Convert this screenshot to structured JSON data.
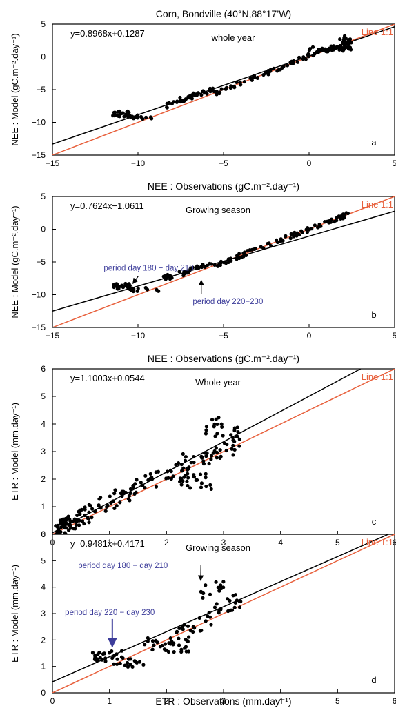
{
  "figure_title": "Corn, Bondville (40°N,88°17’W)",
  "colors": {
    "regression": "#000000",
    "one_to_one": "#e8603c",
    "points": "#000000",
    "annotation": "#3c3c9a"
  },
  "chart_data": [
    {
      "type": "scatter",
      "panel": "a",
      "title": "Corn, Bondville (40°N,88°17’W)",
      "xlabel": "NEE : Observations (gC.m⁻².day⁻¹)",
      "ylabel": "NEE : Model (gC.m⁻².day⁻¹)",
      "xlim": [
        -15,
        5
      ],
      "ylim": [
        -15,
        5
      ],
      "xticks": [
        -15,
        -10,
        -5,
        0,
        5
      ],
      "yticks": [
        -15,
        -10,
        -5,
        0,
        5
      ],
      "xtick_labels": [
        "−15",
        "−10",
        "−5",
        "0",
        "5"
      ],
      "ytick_labels": [
        "−15",
        "−10",
        "−5",
        "0",
        "5"
      ],
      "equation": "y=0.8968x+0.1287",
      "fit": {
        "slope": 0.8968,
        "intercept": 0.1287
      },
      "season_label": "whole year",
      "line_label": "Line 1:1",
      "clusters": [
        {
          "x0": -11.5,
          "x1": -10.3,
          "base": -8.7,
          "spread": 0.45,
          "n": 24
        },
        {
          "x0": -10.5,
          "x1": -8.8,
          "base": -9.2,
          "spread": 0.3,
          "n": 12
        },
        {
          "x0": -8.5,
          "x1": -5.5,
          "base": "fit",
          "spread": 0.45,
          "n": 40
        },
        {
          "x0": -5.5,
          "x1": -1.0,
          "base": "one",
          "spread": 0.35,
          "n": 45
        },
        {
          "x0": -1.0,
          "x1": 2.5,
          "base": "fit",
          "spread": 0.35,
          "n": 45
        },
        {
          "x0": 0.0,
          "x1": 2.5,
          "base": 1.2,
          "spread": 0.3,
          "n": 40
        },
        {
          "x0": 1.8,
          "x1": 2.5,
          "base": 2.9,
          "spread": 0.3,
          "n": 10
        }
      ],
      "seed": 11
    },
    {
      "type": "scatter",
      "panel": "b",
      "title": "NEE : Observations (gC.m⁻².day⁻¹)",
      "xlabel": "NEE : Observations (gC.m⁻².day⁻¹)",
      "ylabel": "NEE : Model (gC.m⁻².day⁻¹)",
      "xlim": [
        -15,
        5
      ],
      "ylim": [
        -15,
        5
      ],
      "xticks": [
        -15,
        -10,
        -5,
        0,
        5
      ],
      "yticks": [
        -15,
        -10,
        -5,
        0,
        5
      ],
      "xtick_labels": [
        "−15",
        "−10",
        "−5",
        "0",
        "5"
      ],
      "ytick_labels": [
        "−15",
        "−10",
        "−5",
        "0",
        "5"
      ],
      "equation": "y=0.7624x−1.0611",
      "fit": {
        "slope": 0.7624,
        "intercept": -1.0611
      },
      "season_label": "Growing season",
      "line_label": "Line 1:1",
      "annotations": [
        {
          "text": "period day 180 − day 210",
          "x": -12.0,
          "y": -6.3,
          "arrow_to": [
            -10.3,
            -8.3
          ]
        },
        {
          "text": "period day 220−230",
          "x": -6.8,
          "y": -11.4,
          "arrow_to": [
            -6.3,
            -7.8
          ]
        }
      ],
      "clusters": [
        {
          "x0": -11.5,
          "x1": -10.3,
          "base": -8.7,
          "spread": 0.45,
          "n": 24
        },
        {
          "x0": -10.5,
          "x1": -8.8,
          "base": -9.2,
          "spread": 0.3,
          "n": 12
        },
        {
          "x0": -8.5,
          "x1": -5.5,
          "base": "fit",
          "spread": 0.45,
          "n": 40
        },
        {
          "x0": -5.5,
          "x1": -1.0,
          "base": "one",
          "spread": 0.35,
          "n": 45
        },
        {
          "x0": -1.0,
          "x1": 2.5,
          "base": "one",
          "spread": 0.35,
          "n": 40
        }
      ],
      "seed": 23
    },
    {
      "type": "scatter",
      "panel": "c",
      "title": "NEE : Observations (gC.m⁻².day⁻¹)",
      "xlabel": "ETR : Observations (mm.day⁻¹)",
      "ylabel": "ETR : Model (mm.day⁻¹)",
      "xlim": [
        0,
        6
      ],
      "ylim": [
        0,
        6
      ],
      "xticks": [
        0,
        1,
        2,
        3,
        4,
        5,
        6
      ],
      "yticks": [
        0,
        1,
        2,
        3,
        4,
        5,
        6
      ],
      "xtick_labels": [
        "0",
        "1",
        "2",
        "3",
        "4",
        "5",
        "6"
      ],
      "ytick_labels": [
        "0",
        "1",
        "2",
        "3",
        "4",
        "5",
        "6"
      ],
      "equation": "y=1.1003x+0.0544",
      "fit": {
        "slope": 1.1003,
        "intercept": 0.0544
      },
      "season_label": "Whole year",
      "line_label": "Line 1:1",
      "clusters": [
        {
          "x0": 0.05,
          "x1": 0.6,
          "base": "fit",
          "spread": 0.3,
          "n": 70
        },
        {
          "x0": 0.6,
          "x1": 1.5,
          "base": "fit",
          "spread": 0.35,
          "n": 45
        },
        {
          "x0": 1.5,
          "x1": 2.5,
          "base": "fit",
          "spread": 0.35,
          "n": 35
        },
        {
          "x0": 2.2,
          "x1": 2.8,
          "base": 1.9,
          "spread": 0.3,
          "n": 25
        },
        {
          "x0": 2.5,
          "x1": 3.3,
          "base": "one",
          "spread": 0.3,
          "n": 30
        },
        {
          "x0": 2.6,
          "x1": 3.0,
          "base": 3.9,
          "spread": 0.35,
          "n": 14
        },
        {
          "x0": 3.0,
          "x1": 3.3,
          "base": 3.7,
          "spread": 0.2,
          "n": 8
        }
      ],
      "seed": 37
    },
    {
      "type": "scatter",
      "panel": "d",
      "title": "ETR : Observations (mm.day⁻¹)",
      "xlabel": "ETR : Observations (mm.day⁻¹)",
      "ylabel": "ETR : Model (mm.day⁻¹)",
      "xlim": [
        0,
        6
      ],
      "ylim": [
        0,
        6
      ],
      "xticks": [
        0,
        1,
        2,
        3,
        4,
        5,
        6
      ],
      "yticks": [
        0,
        1,
        2,
        3,
        4,
        5,
        6
      ],
      "xtick_labels": [
        "0",
        "1",
        "2",
        "3",
        "4",
        "5",
        "6"
      ],
      "ytick_labels": [
        "0",
        "1",
        "2",
        "3",
        "4",
        "5",
        "6"
      ],
      "equation": "y=0.9481x+0.4171",
      "fit": {
        "slope": 0.9481,
        "intercept": 0.4171
      },
      "season_label": "Growing season",
      "line_label": "Line 1:1",
      "annotations": [
        {
          "text": "period day 180 − day 210",
          "x": 0.45,
          "y": 4.72,
          "arrow_to": [
            2.6,
            4.25
          ]
        },
        {
          "text": "period day 220 − day 230",
          "x": 0.22,
          "y": 2.95,
          "arrow_to": [
            1.05,
            1.75
          ]
        }
      ],
      "clusters": [
        {
          "x0": 0.7,
          "x1": 1.6,
          "base": 1.4,
          "spread": 0.25,
          "n": 30
        },
        {
          "x0": 1.0,
          "x1": 1.6,
          "base": 1.05,
          "spread": 0.1,
          "n": 10
        },
        {
          "x0": 1.6,
          "x1": 2.5,
          "base": 1.8,
          "spread": 0.3,
          "n": 30
        },
        {
          "x0": 2.0,
          "x1": 2.8,
          "base": "one",
          "spread": 0.3,
          "n": 25
        },
        {
          "x0": 2.6,
          "x1": 3.0,
          "base": 3.9,
          "spread": 0.35,
          "n": 14
        },
        {
          "x0": 2.8,
          "x1": 3.3,
          "base": "fit",
          "spread": 0.3,
          "n": 20
        }
      ],
      "seed": 53
    }
  ]
}
